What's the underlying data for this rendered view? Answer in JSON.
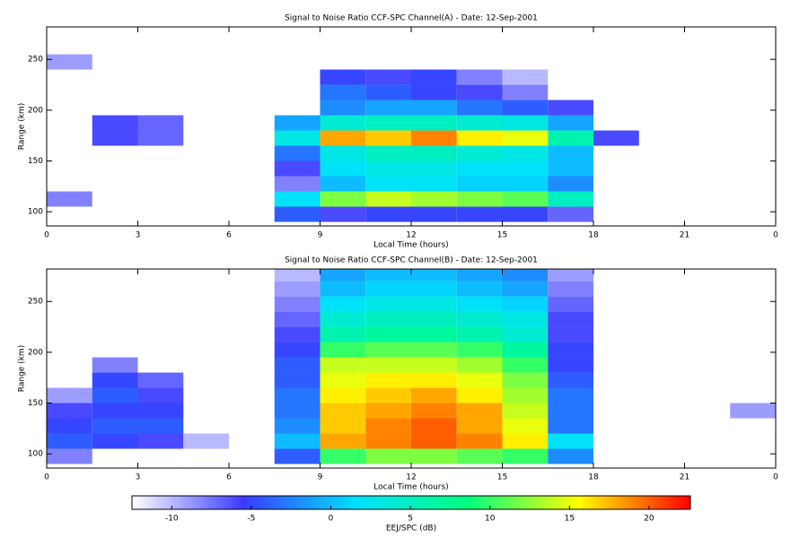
{
  "chart_data": [
    {
      "type": "heatmap",
      "title": "Signal to Noise Ratio CCF-SPC Channel(A) - Date: 12-Sep-2001",
      "x_label": "Local Time (hours)",
      "y_label": "Range (km)",
      "xlim": [
        0,
        24
      ],
      "ylim": [
        86,
        282
      ],
      "xticks": [
        0,
        3,
        6,
        9,
        12,
        15,
        18,
        21,
        {
          "value": 24,
          "label": "0"
        }
      ],
      "yticks": [
        100,
        150,
        200,
        250
      ],
      "x_bins": [
        0,
        1.5,
        3,
        4.5,
        6,
        7.5,
        9,
        10.5,
        12,
        13.5,
        15,
        16.5,
        18,
        19.5,
        21,
        22.5,
        24
      ],
      "y_bins": [
        90,
        105,
        120,
        135,
        150,
        165,
        180,
        195,
        210,
        225,
        240,
        255,
        270,
        285
      ],
      "values": [
        [
          null,
          null,
          null,
          null,
          null,
          -4,
          -6,
          -5,
          -5,
          -5,
          -5,
          -7,
          null,
          null,
          null,
          null
        ],
        [
          -8,
          null,
          null,
          null,
          null,
          2,
          12,
          14,
          13,
          12,
          11,
          5,
          null,
          null,
          null,
          null
        ],
        [
          null,
          null,
          null,
          null,
          null,
          -8,
          0,
          2,
          2,
          1,
          1,
          -2,
          null,
          null,
          null,
          null
        ],
        [
          null,
          null,
          null,
          null,
          null,
          -6,
          2,
          3,
          3,
          2,
          2,
          0,
          null,
          null,
          null,
          null
        ],
        [
          null,
          null,
          null,
          null,
          null,
          -3,
          3,
          5,
          5,
          4,
          3,
          0,
          null,
          null,
          null,
          null
        ],
        [
          null,
          -6,
          -7,
          null,
          null,
          3,
          18,
          17,
          19,
          16,
          15,
          6,
          -6,
          null,
          null,
          null
        ],
        [
          null,
          -6,
          -7,
          null,
          null,
          -1,
          4,
          5,
          5,
          4,
          3,
          -1,
          null,
          null,
          null,
          null
        ],
        [
          null,
          null,
          null,
          null,
          null,
          null,
          -2,
          -1,
          -1,
          -3,
          -4,
          -6,
          null,
          null,
          null,
          null
        ],
        [
          null,
          null,
          null,
          null,
          null,
          null,
          -3,
          -4,
          -5,
          -6,
          -8,
          null,
          null,
          null,
          null,
          null
        ],
        [
          null,
          null,
          null,
          null,
          null,
          null,
          -5,
          -6,
          -5,
          -8,
          -10,
          null,
          null,
          null,
          null,
          null
        ],
        [
          -9,
          null,
          null,
          null,
          null,
          null,
          null,
          null,
          null,
          null,
          null,
          null,
          null,
          null,
          null,
          null
        ],
        [
          null,
          null,
          null,
          null,
          null,
          null,
          null,
          null,
          null,
          null,
          null,
          null,
          null,
          null,
          null,
          null
        ],
        [
          null,
          null,
          null,
          null,
          null,
          null,
          null,
          null,
          null,
          null,
          null,
          null,
          null,
          null,
          null,
          null
        ]
      ]
    },
    {
      "type": "heatmap",
      "title": "Signal to Noise Ratio CCF-SPC Channel(B) - Date: 12-Sep-2001",
      "x_label": "Local Time (hours)",
      "y_label": "Range (km)",
      "xlim": [
        0,
        24
      ],
      "ylim": [
        86,
        282
      ],
      "xticks": [
        0,
        3,
        6,
        9,
        12,
        15,
        18,
        21,
        {
          "value": 24,
          "label": "0"
        }
      ],
      "yticks": [
        100,
        150,
        200,
        250
      ],
      "x_bins": [
        0,
        1.5,
        3,
        4.5,
        6,
        7.5,
        9,
        10.5,
        12,
        13.5,
        15,
        16.5,
        18,
        19.5,
        21,
        22.5,
        24
      ],
      "y_bins": [
        90,
        105,
        120,
        135,
        150,
        165,
        180,
        195,
        210,
        225,
        240,
        255,
        270,
        285
      ],
      "values": [
        [
          -8,
          null,
          null,
          null,
          null,
          -4,
          10,
          12,
          12,
          11,
          10,
          -2,
          null,
          null,
          null,
          null
        ],
        [
          -4,
          -5,
          -6,
          -10,
          null,
          0,
          18,
          19,
          20,
          19,
          16,
          2,
          null,
          null,
          null,
          null
        ],
        [
          -5,
          -4,
          -4,
          null,
          null,
          -2,
          17,
          19,
          20,
          18,
          15,
          -3,
          null,
          null,
          null,
          null
        ],
        [
          -6,
          -5,
          -5,
          null,
          null,
          -3,
          17,
          18,
          19,
          18,
          14,
          -3,
          null,
          null,
          null,
          -9
        ],
        [
          -9,
          -4,
          -6,
          null,
          null,
          -3,
          16,
          17,
          18,
          16,
          13,
          -3,
          null,
          null,
          null,
          null
        ],
        [
          null,
          -5,
          -7,
          null,
          null,
          -4,
          15,
          16,
          16,
          15,
          12,
          -4,
          null,
          null,
          null,
          null
        ],
        [
          null,
          -8,
          null,
          null,
          null,
          -4,
          14,
          14,
          14,
          13,
          10,
          -5,
          null,
          null,
          null,
          null
        ],
        [
          null,
          null,
          null,
          null,
          null,
          -5,
          10,
          11,
          11,
          10,
          7,
          -5,
          null,
          null,
          null,
          null
        ],
        [
          null,
          null,
          null,
          null,
          null,
          -6,
          6,
          7,
          7,
          6,
          4,
          -6,
          null,
          null,
          null,
          null
        ],
        [
          null,
          null,
          null,
          null,
          null,
          -7,
          4,
          5,
          5,
          4,
          3,
          -6,
          null,
          null,
          null,
          null
        ],
        [
          null,
          null,
          null,
          null,
          null,
          -8,
          2,
          3,
          3,
          2,
          1,
          -7,
          null,
          null,
          null,
          null
        ],
        [
          null,
          null,
          null,
          null,
          null,
          -9,
          0,
          1,
          1,
          0,
          -1,
          -8,
          null,
          null,
          null,
          null
        ],
        [
          null,
          null,
          null,
          null,
          null,
          -10,
          -1,
          0,
          0,
          -1,
          -2,
          -9,
          null,
          null,
          null,
          null
        ]
      ]
    }
  ],
  "colorbar": {
    "label": "EEJ/SPC (dB)",
    "zlim": [
      -12.5,
      22.6
    ],
    "ticks": [
      -10,
      -5,
      0,
      5,
      10,
      15,
      20
    ],
    "colormap": [
      "#ffffff",
      "#3a3aff",
      "#00e0ff",
      "#00ff80",
      "#ffff00",
      "#ff0000"
    ]
  }
}
